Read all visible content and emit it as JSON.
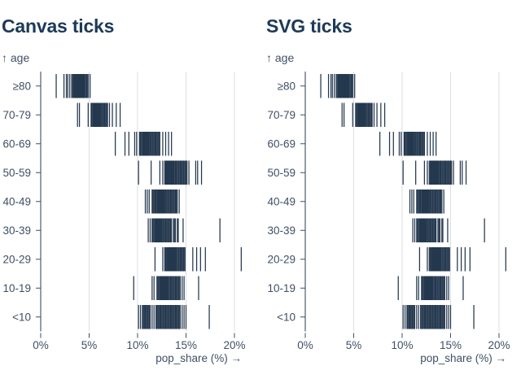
{
  "chart_data": {
    "type": "tick",
    "charts": [
      {
        "title": "Canvas ticks",
        "renderer": "canvas"
      },
      {
        "title": "SVG ticks",
        "renderer": "svg"
      }
    ],
    "both_charts_show_same_data": true,
    "xlabel": "pop_share (%) →",
    "ylabel": "↑ age",
    "x_domain": [
      0,
      21
    ],
    "x_ticks": [
      0,
      5,
      10,
      15,
      20
    ],
    "x_tick_labels": [
      "0%",
      "5%",
      "10%",
      "15%",
      "20%"
    ],
    "grid": "vertical-gridlines-at-x-ticks",
    "legend": "none",
    "categories": [
      "≥80",
      "70-79",
      "60-69",
      "50-59",
      "40-49",
      "30-39",
      "20-29",
      "10-19",
      "<10"
    ],
    "series": [
      {
        "age": "≥80",
        "shares": [
          1.6,
          2.4,
          2.65,
          2.8,
          3.0,
          3.2,
          3.3,
          3.4,
          3.45,
          3.5,
          3.55,
          3.6,
          3.65,
          3.7,
          3.75,
          3.8,
          3.85,
          3.9,
          3.95,
          4.0,
          4.05,
          4.1,
          4.15,
          4.2,
          4.25,
          4.3,
          4.35,
          4.4,
          4.45,
          4.5,
          4.6,
          4.7,
          4.8,
          4.9,
          5.1
        ]
      },
      {
        "age": "70-79",
        "shares": [
          3.8,
          4.0,
          4.9,
          5.2,
          5.3,
          5.4,
          5.45,
          5.5,
          5.55,
          5.6,
          5.65,
          5.7,
          5.75,
          5.8,
          5.85,
          5.9,
          5.95,
          6.0,
          6.05,
          6.1,
          6.15,
          6.2,
          6.3,
          6.4,
          6.5,
          6.6,
          6.7,
          6.8,
          6.9,
          7.1,
          7.4,
          7.8,
          8.2
        ]
      },
      {
        "age": "60-69",
        "shares": [
          7.7,
          8.7,
          9.1,
          9.7,
          9.9,
          10.2,
          10.3,
          10.4,
          10.5,
          10.55,
          10.6,
          10.65,
          10.7,
          10.75,
          10.8,
          10.85,
          10.9,
          10.95,
          11.0,
          11.05,
          11.1,
          11.15,
          11.2,
          11.3,
          11.4,
          11.5,
          11.6,
          11.7,
          11.8,
          11.9,
          12.0,
          12.1,
          12.2,
          12.3,
          12.6,
          12.9,
          13.2,
          13.5
        ]
      },
      {
        "age": "50-59",
        "shares": [
          10.1,
          11.4,
          12.3,
          12.6,
          12.8,
          12.9,
          12.95,
          13.0,
          13.05,
          13.1,
          13.15,
          13.2,
          13.25,
          13.3,
          13.35,
          13.4,
          13.45,
          13.5,
          13.55,
          13.6,
          13.65,
          13.7,
          13.75,
          13.8,
          13.9,
          14.0,
          14.1,
          14.2,
          14.3,
          14.4,
          14.5,
          14.6,
          14.7,
          14.8,
          14.9,
          15.0,
          15.1,
          15.3,
          16.0,
          16.2,
          16.6
        ]
      },
      {
        "age": "40-49",
        "shares": [
          10.8,
          11.0,
          11.2,
          11.5,
          11.6,
          11.7,
          11.8,
          11.9,
          12.0,
          12.05,
          12.1,
          12.15,
          12.2,
          12.25,
          12.3,
          12.35,
          12.4,
          12.45,
          12.5,
          12.55,
          12.6,
          12.65,
          12.7,
          12.75,
          12.8,
          12.9,
          13.0,
          13.1,
          13.2,
          13.3,
          13.4,
          13.5,
          13.6,
          13.7,
          13.8,
          13.9,
          14.0,
          14.1,
          14.3
        ]
      },
      {
        "age": "30-39",
        "shares": [
          11.1,
          11.3,
          11.5,
          11.6,
          11.7,
          11.8,
          11.9,
          11.95,
          12.0,
          12.05,
          12.1,
          12.15,
          12.2,
          12.25,
          12.3,
          12.35,
          12.4,
          12.45,
          12.5,
          12.6,
          12.7,
          12.8,
          12.9,
          13.0,
          13.1,
          13.2,
          13.3,
          13.4,
          13.5,
          13.7,
          13.8,
          13.9,
          14.1,
          14.2,
          14.7,
          18.5
        ]
      },
      {
        "age": "20-29",
        "shares": [
          11.8,
          12.6,
          12.8,
          12.9,
          13.0,
          13.05,
          13.1,
          13.15,
          13.2,
          13.25,
          13.3,
          13.35,
          13.4,
          13.45,
          13.5,
          13.55,
          13.6,
          13.65,
          13.7,
          13.75,
          13.8,
          13.85,
          13.9,
          14.0,
          14.1,
          14.2,
          14.3,
          14.4,
          14.5,
          14.6,
          14.7,
          14.8,
          14.9,
          15.7,
          16.1,
          16.5,
          17.0,
          20.7
        ]
      },
      {
        "age": "10-19",
        "shares": [
          9.6,
          11.5,
          11.7,
          12.0,
          12.1,
          12.2,
          12.3,
          12.4,
          12.45,
          12.5,
          12.55,
          12.6,
          12.65,
          12.7,
          12.75,
          12.8,
          12.85,
          12.9,
          12.95,
          13.0,
          13.05,
          13.1,
          13.2,
          13.3,
          13.4,
          13.5,
          13.6,
          13.7,
          13.8,
          13.9,
          14.0,
          14.1,
          14.2,
          14.3,
          14.4,
          14.6,
          14.8,
          16.3
        ]
      },
      {
        "age": "<10",
        "shares": [
          10.1,
          10.3,
          10.5,
          10.6,
          10.7,
          10.8,
          10.9,
          11.0,
          11.1,
          11.2,
          11.3,
          11.5,
          11.7,
          11.9,
          12.0,
          12.1,
          12.2,
          12.3,
          12.4,
          12.5,
          12.6,
          12.7,
          12.8,
          12.9,
          13.0,
          13.1,
          13.2,
          13.3,
          13.4,
          13.5,
          13.6,
          13.7,
          13.8,
          13.9,
          14.0,
          14.1,
          14.2,
          14.3,
          14.4,
          14.6,
          14.8,
          15.0,
          17.4
        ]
      }
    ]
  },
  "colors": {
    "background": "#ffffff",
    "title": "#1d3a57",
    "tick_mark": "#24384e",
    "axis_text": "#3f4f66",
    "gridline": "#dcdee3",
    "zero_line": "#2a3b50"
  }
}
